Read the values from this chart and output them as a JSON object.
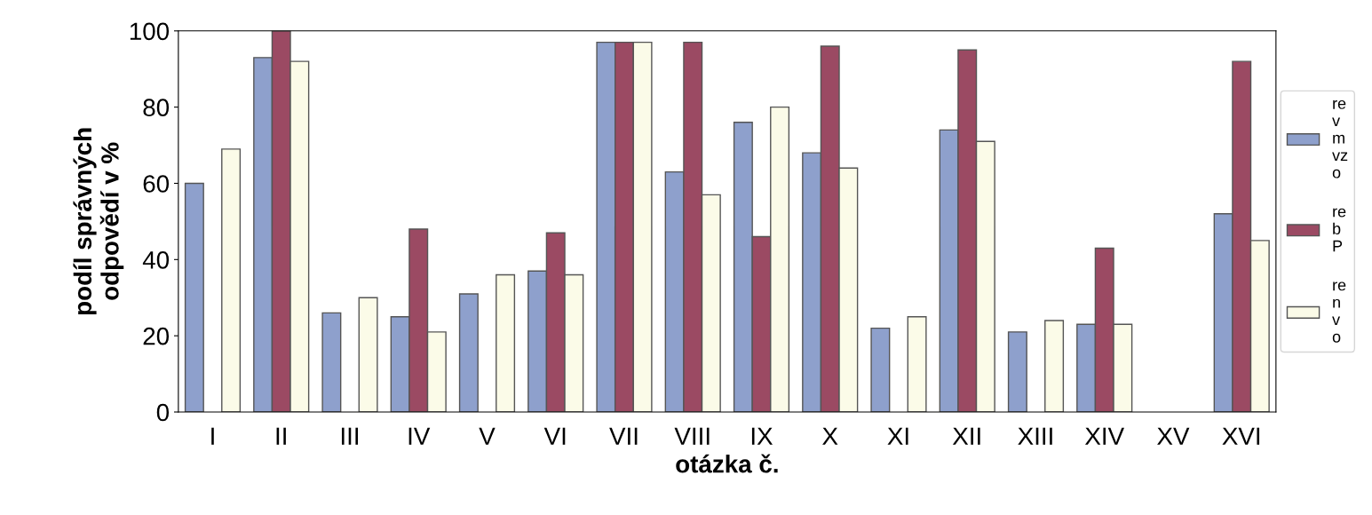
{
  "chart_data": {
    "type": "bar",
    "xlabel": "otázka č.",
    "ylabel": "podíl správných\nodpovědí v %",
    "categories": [
      "I",
      "II",
      "III",
      "IV",
      "V",
      "VI",
      "VII",
      "VIII",
      "IX",
      "X",
      "XI",
      "XII",
      "XIII",
      "XIV",
      "XV",
      "XVI"
    ],
    "series": [
      {
        "name": "re\nv\nm\nvz\no",
        "color": "#8ea0cc",
        "values": [
          60,
          93,
          26,
          25,
          31,
          37,
          97,
          63,
          76,
          68,
          22,
          74,
          21,
          23,
          null,
          52
        ]
      },
      {
        "name": "re\nb\nP",
        "color": "#9b4a63",
        "values": [
          null,
          100,
          null,
          48,
          null,
          47,
          97,
          97,
          46,
          96,
          null,
          95,
          null,
          43,
          null,
          92
        ]
      },
      {
        "name": "re\nn\nv\no",
        "color": "#fbfbe8",
        "values": [
          69,
          92,
          30,
          21,
          36,
          36,
          97,
          57,
          80,
          64,
          25,
          71,
          24,
          23,
          null,
          45
        ]
      }
    ],
    "ylim": [
      0,
      100
    ],
    "yticks": [
      0,
      20,
      40,
      60,
      80,
      100
    ],
    "grid": false,
    "legend": "right"
  }
}
